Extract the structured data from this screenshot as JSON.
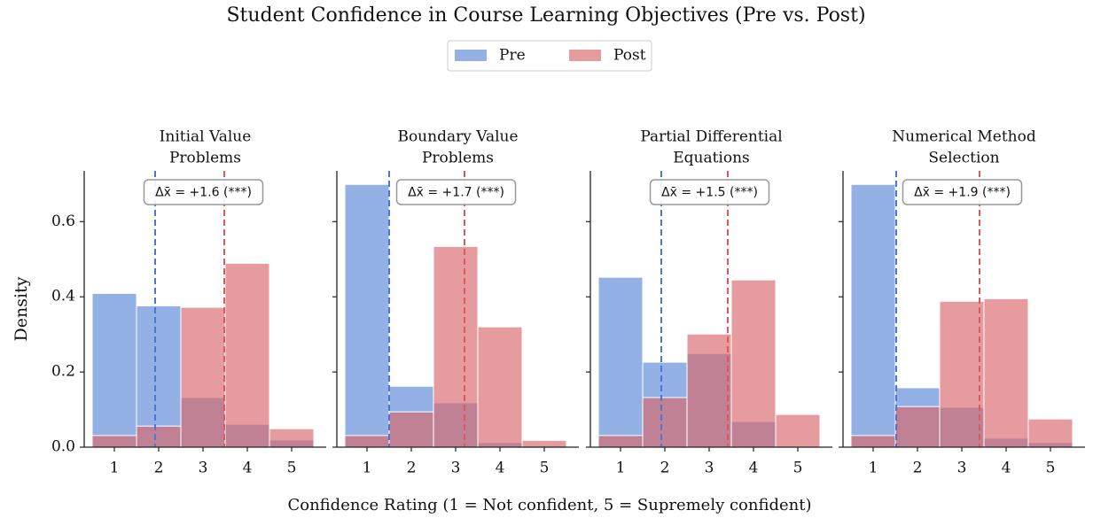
{
  "figure": {
    "title": "Student Confidence in Course Learning Objectives (Pre vs. Post)",
    "xlabel": "Confidence Rating (1 = Not confident, 5 = Supremely confident)",
    "ylabel": "Density",
    "legend": "upper center"
  },
  "chart_data": [
    {
      "type": "histogram",
      "title": [
        "Initial Value",
        "Problems"
      ],
      "annotation": "Δx̄ = +1.6 (***)",
      "bins": [
        0.5,
        1.5,
        2.5,
        3.5,
        4.5,
        5.5
      ],
      "series": [
        {
          "name": "Pre",
          "color": "#5b87d9",
          "line_color": "#4a78d0",
          "mean": 1.92,
          "values": [
            0.409,
            0.376,
            0.132,
            0.061,
            0.019
          ]
        },
        {
          "name": "Post",
          "color": "#d9676a",
          "line_color": "#d9595c",
          "mean": 3.48,
          "values": [
            0.031,
            0.056,
            0.372,
            0.489,
            0.049
          ]
        }
      ],
      "xlim": [
        0.32,
        5.78
      ],
      "xticks": [
        1,
        2,
        3,
        4,
        5
      ],
      "ylim": [
        0,
        0.735
      ],
      "yticks": [
        {
          "value": 0,
          "label": "0.0"
        },
        0.2,
        0.4,
        0.6
      ],
      "show_yticklabels": true
    },
    {
      "type": "histogram",
      "title": [
        "Boundary Value",
        "Problems"
      ],
      "annotation": "Δx̄ = +1.7 (***)",
      "bins": [
        0.5,
        1.5,
        2.5,
        3.5,
        4.5,
        5.5
      ],
      "series": [
        {
          "name": "Pre",
          "color": "#5b87d9",
          "line_color": "#4a78d0",
          "mean": 1.5,
          "values": [
            0.699,
            0.162,
            0.118,
            0.012,
            0.003
          ]
        },
        {
          "name": "Post",
          "color": "#d9676a",
          "line_color": "#d9595c",
          "mean": 3.2,
          "values": [
            0.031,
            0.094,
            0.534,
            0.32,
            0.018
          ]
        }
      ],
      "xlim": [
        0.32,
        5.78
      ],
      "xticks": [
        1,
        2,
        3,
        4,
        5
      ],
      "ylim": [
        0,
        0.735
      ],
      "yticks": [
        {
          "value": 0,
          "label": "0.0"
        },
        0.2,
        0.4,
        0.6
      ],
      "show_yticklabels": false
    },
    {
      "type": "histogram",
      "title": [
        "Partial Differential",
        "Equations"
      ],
      "annotation": "Δx̄ = +1.5 (***)",
      "bins": [
        0.5,
        1.5,
        2.5,
        3.5,
        4.5,
        5.5
      ],
      "series": [
        {
          "name": "Pre",
          "color": "#5b87d9",
          "line_color": "#4a78d0",
          "mean": 1.92,
          "values": [
            0.452,
            0.226,
            0.249,
            0.068,
            0.0
          ]
        },
        {
          "name": "Post",
          "color": "#d9676a",
          "line_color": "#d9595c",
          "mean": 3.42,
          "values": [
            0.031,
            0.132,
            0.301,
            0.445,
            0.087
          ]
        }
      ],
      "xlim": [
        0.32,
        5.78
      ],
      "xticks": [
        1,
        2,
        3,
        4,
        5
      ],
      "ylim": [
        0,
        0.735
      ],
      "yticks": [
        {
          "value": 0,
          "label": "0.0"
        },
        0.2,
        0.4,
        0.6
      ],
      "show_yticklabels": false
    },
    {
      "type": "histogram",
      "title": [
        "Numerical Method",
        "Selection"
      ],
      "annotation": "Δx̄ = +1.9 (***)",
      "bins": [
        0.5,
        1.5,
        2.5,
        3.5,
        4.5,
        5.5
      ],
      "series": [
        {
          "name": "Pre",
          "color": "#5b87d9",
          "line_color": "#4a78d0",
          "mean": 1.52,
          "values": [
            0.699,
            0.158,
            0.106,
            0.024,
            0.012
          ]
        },
        {
          "name": "Post",
          "color": "#d9676a",
          "line_color": "#d9595c",
          "mean": 3.4,
          "values": [
            0.031,
            0.108,
            0.388,
            0.395,
            0.075
          ]
        }
      ],
      "xlim": [
        0.32,
        5.78
      ],
      "xticks": [
        1,
        2,
        3,
        4,
        5
      ],
      "ylim": [
        0,
        0.735
      ],
      "yticks": [
        {
          "value": 0,
          "label": "0.0"
        },
        0.2,
        0.4,
        0.6
      ],
      "show_yticklabels": false
    }
  ]
}
